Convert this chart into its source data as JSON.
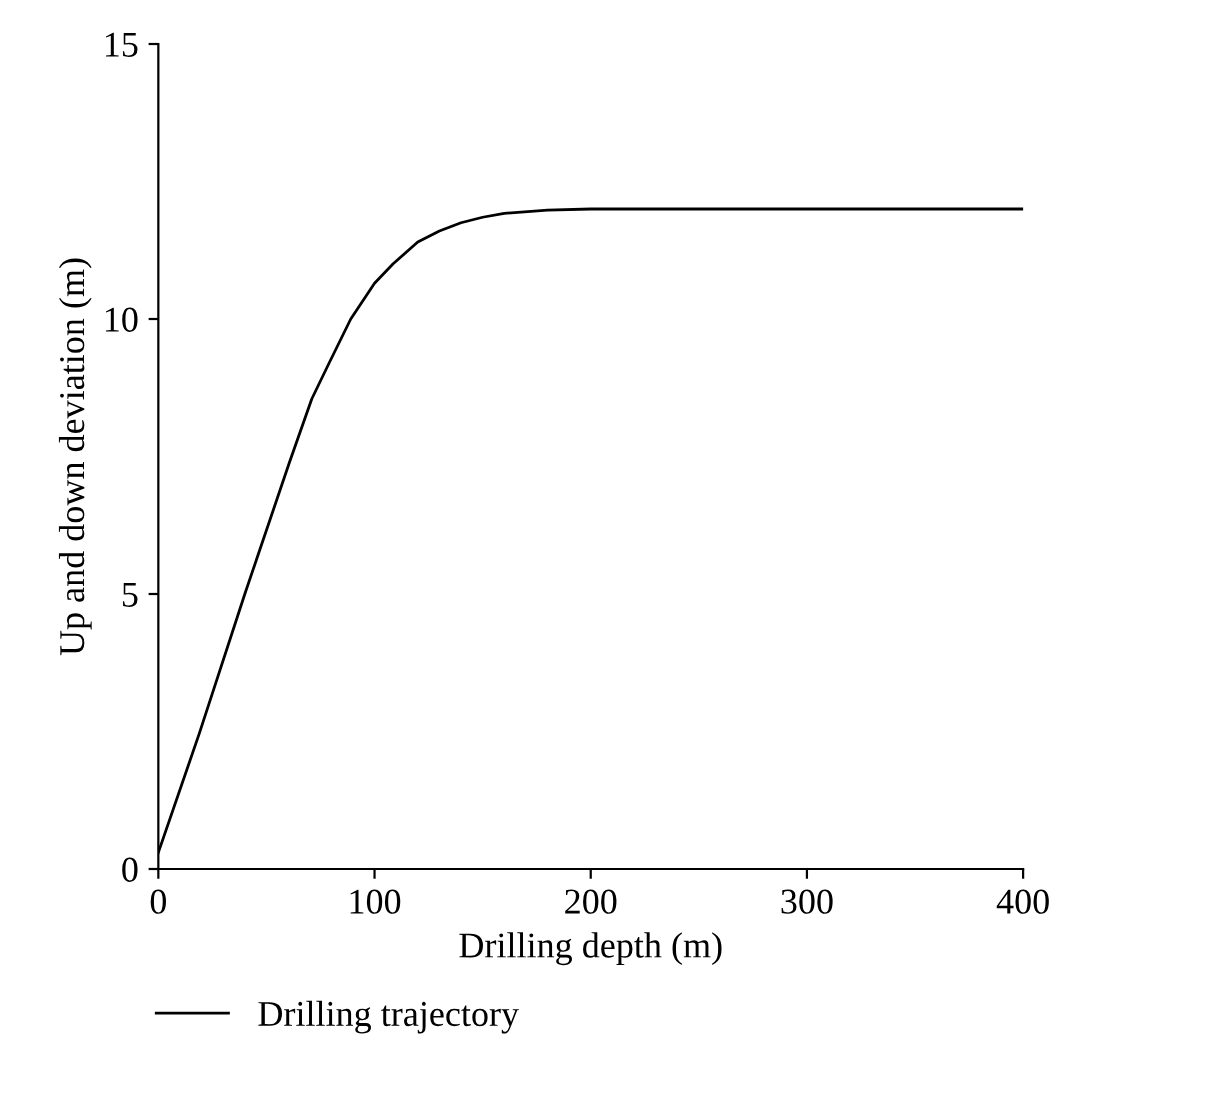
{
  "chart_data": {
    "type": "line",
    "xlabel": "Drilling depth (m)",
    "ylabel": "Up and down deviation (m)",
    "x": [
      0,
      19,
      40,
      60.7,
      71,
      79,
      89,
      100,
      108.5,
      120,
      130,
      140,
      150,
      160,
      180,
      200,
      250,
      300,
      400
    ],
    "series": [
      {
        "name": "Drilling trajectory",
        "color": "#000000",
        "values": [
          0.3,
          2.47,
          5.0,
          7.4,
          8.55,
          9.2,
          10.0,
          10.65,
          11.0,
          11.4,
          11.6,
          11.75,
          11.85,
          11.92,
          11.98,
          12.0,
          12.0,
          12.0,
          12.0
        ]
      }
    ],
    "xlim": [
      0,
      400
    ],
    "ylim": [
      0,
      15
    ],
    "xticks": [
      0,
      100,
      200,
      300,
      400
    ],
    "yticks": [
      0,
      5,
      10,
      15
    ],
    "grid": false,
    "legend": "bottom left",
    "marker": "none",
    "line_style": "solid"
  }
}
